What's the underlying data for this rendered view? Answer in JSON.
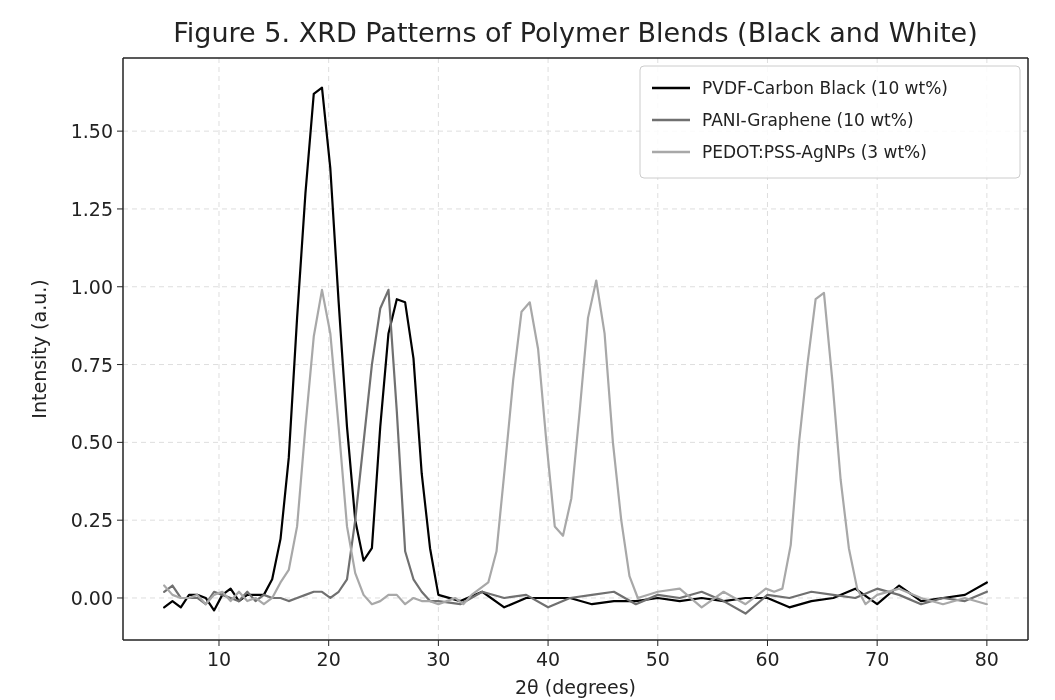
{
  "chart_data": {
    "type": "line",
    "title": "Figure 5. XRD Patterns of Polymer Blends (Black and White)",
    "xlabel": "2θ (degrees)",
    "ylabel": "Intensity (a.u.)",
    "xlim": [
      1.25,
      83.75
    ],
    "ylim": [
      -0.135,
      1.735
    ],
    "xticks": [
      10,
      20,
      30,
      40,
      50,
      60,
      70,
      80
    ],
    "yticks": [
      {
        "value": 0,
        "label": "0.00"
      },
      {
        "value": 0.25,
        "label": "0.25"
      },
      {
        "value": 0.5,
        "label": "0.50"
      },
      {
        "value": 0.75,
        "label": "0.75"
      },
      {
        "value": 1,
        "label": "1.00"
      },
      {
        "value": 1.25,
        "label": "1.25"
      },
      {
        "value": 1.5,
        "label": "1.50"
      }
    ],
    "grid": true,
    "legend": "top right",
    "line_style": "solid",
    "marker": "none",
    "series": [
      {
        "name": "PVDF-Carbon Black (10 wt%)",
        "color": "#000000",
        "x": [
          5,
          5.76,
          6.52,
          7.27,
          8.03,
          8.79,
          9.55,
          10.3,
          11.06,
          11.82,
          12.58,
          13.33,
          14.09,
          14.85,
          15.61,
          16.36,
          17.12,
          17.88,
          18.64,
          19.39,
          20.15,
          20.91,
          21.67,
          22.42,
          23.18,
          23.94,
          24.7,
          25.45,
          26.21,
          26.97,
          27.73,
          28.48,
          29.24,
          30,
          32,
          34,
          36,
          38,
          40,
          42,
          44,
          46,
          48,
          50,
          52,
          54,
          56,
          58,
          60,
          62,
          64,
          66,
          68,
          70,
          72,
          74,
          76,
          78,
          80
        ],
        "values": [
          -0.03,
          -0.01,
          -0.03,
          0.01,
          0.01,
          0,
          -0.04,
          0.01,
          0.03,
          -0.01,
          0.01,
          0.01,
          0.01,
          0.06,
          0.19,
          0.45,
          0.9,
          1.3,
          1.62,
          1.64,
          1.38,
          0.95,
          0.55,
          0.25,
          0.12,
          0.16,
          0.55,
          0.85,
          0.96,
          0.95,
          0.77,
          0.4,
          0.16,
          0.01,
          -0.01,
          0.02,
          -0.03,
          0,
          0,
          0,
          -0.02,
          -0.01,
          -0.01,
          0,
          -0.01,
          0,
          -0.01,
          0,
          0,
          -0.03,
          -0.01,
          0,
          0.03,
          -0.02,
          0.04,
          -0.01,
          0,
          0.01,
          0.05
        ]
      },
      {
        "name": "PANI-Graphene (10 wt%)",
        "color": "#707070",
        "x": [
          5,
          5.76,
          6.52,
          7.27,
          8.03,
          8.79,
          9.55,
          10.3,
          11.06,
          11.82,
          12.58,
          13.33,
          14.09,
          14.85,
          15.61,
          16.36,
          17.12,
          17.88,
          18.64,
          19.39,
          20.15,
          20.91,
          21.67,
          22.42,
          23.18,
          23.94,
          24.7,
          25.45,
          26.21,
          26.97,
          27.73,
          28.48,
          29.24,
          30,
          32,
          34,
          36,
          38,
          40,
          42,
          44,
          46,
          48,
          50,
          52,
          54,
          56,
          58,
          60,
          62,
          64,
          66,
          68,
          70,
          72,
          74,
          76,
          78,
          80
        ],
        "values": [
          0.02,
          0.04,
          0,
          0,
          0,
          -0.02,
          0.02,
          0.01,
          0,
          -0.01,
          0.02,
          -0.01,
          0.01,
          0,
          0,
          -0.01,
          0,
          0.01,
          0.02,
          0.02,
          0,
          0.02,
          0.06,
          0.25,
          0.5,
          0.75,
          0.93,
          0.99,
          0.6,
          0.15,
          0.06,
          0.02,
          -0.01,
          -0.01,
          -0.02,
          0.02,
          0,
          0.01,
          -0.03,
          0,
          0.01,
          0.02,
          -0.02,
          0.01,
          0,
          0.02,
          -0.01,
          -0.05,
          0.01,
          0,
          0.02,
          0.01,
          0,
          0.03,
          0.01,
          -0.02,
          0,
          -0.01,
          0.02
        ]
      },
      {
        "name": "PEDOT:PSS-AgNPs (3 wt%)",
        "color": "#a8a8a8",
        "x": [
          5,
          5.76,
          6.52,
          7.27,
          8.03,
          8.79,
          9.55,
          10.3,
          11.06,
          11.82,
          12.58,
          13.33,
          14.09,
          14.85,
          15.61,
          16.36,
          17.12,
          17.88,
          18.64,
          19.39,
          20.15,
          20.91,
          21.67,
          22.42,
          23.18,
          23.94,
          24.7,
          25.45,
          26.21,
          26.97,
          27.73,
          28.48,
          29.24,
          30,
          30.76,
          31.52,
          32.27,
          33.03,
          33.79,
          34.55,
          35.3,
          36.06,
          36.82,
          37.58,
          38.33,
          39.09,
          39.85,
          40.61,
          41.36,
          42.12,
          42.88,
          43.64,
          44.39,
          45.15,
          45.91,
          46.67,
          47.42,
          48.18,
          50,
          52,
          54,
          56,
          58,
          59.85,
          60.61,
          61.36,
          62.12,
          62.88,
          63.64,
          64.39,
          65.15,
          65.91,
          66.67,
          67.42,
          68.18,
          68.94,
          70,
          72,
          74,
          76,
          78,
          80
        ],
        "values": [
          0.04,
          0.01,
          0,
          0,
          0.01,
          -0.02,
          0.01,
          0.02,
          -0.01,
          0.02,
          -0.01,
          0,
          -0.02,
          0,
          0.05,
          0.09,
          0.23,
          0.55,
          0.84,
          0.99,
          0.85,
          0.55,
          0.23,
          0.08,
          0.01,
          -0.02,
          -0.01,
          0.01,
          0.01,
          -0.02,
          0,
          -0.01,
          -0.01,
          -0.02,
          -0.01,
          0,
          -0.02,
          0.01,
          0.03,
          0.05,
          0.15,
          0.42,
          0.7,
          0.92,
          0.95,
          0.8,
          0.5,
          0.23,
          0.2,
          0.32,
          0.6,
          0.9,
          1.02,
          0.85,
          0.5,
          0.25,
          0.07,
          0,
          0.02,
          0.03,
          -0.03,
          0.02,
          -0.02,
          0.03,
          0.02,
          0.03,
          0.17,
          0.5,
          0.75,
          0.96,
          0.98,
          0.7,
          0.38,
          0.16,
          0.03,
          -0.02,
          0.01,
          0.03,
          0,
          -0.02,
          0,
          -0.02
        ]
      }
    ]
  }
}
